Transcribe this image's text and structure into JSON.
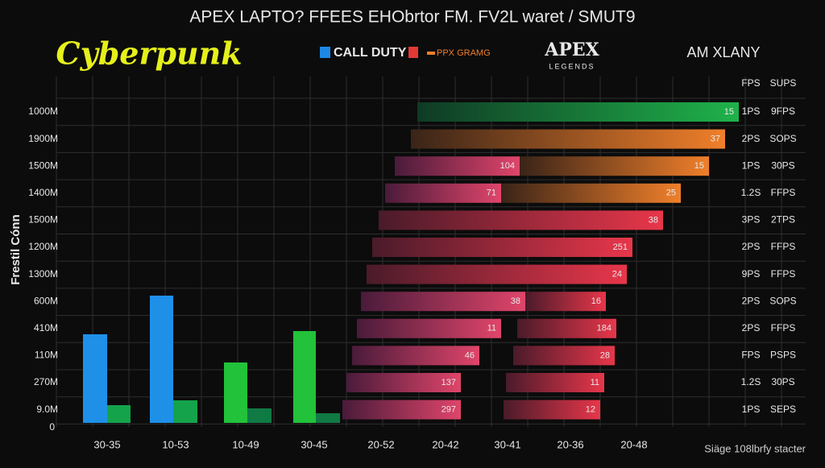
{
  "header": {
    "title": "APEX LAPTO? FFEES EHObrtor FM. FV2L waret / SMUT9"
  },
  "logos": {
    "cyberpunk": "Cyberpunk",
    "call_of_duty": "CALL DUTY",
    "ppx": "PPX GRAMG",
    "apex": "APEX",
    "legends": "LEGENDS",
    "company": "AM XLANY"
  },
  "y_axis_label": "Frestil Cónn",
  "column_headers": [
    "FPS",
    "SUPS"
  ],
  "rows": [
    {
      "label": "1000M",
      "bars": [
        "15"
      ],
      "fps": "1PS",
      "sups": "9FPS"
    },
    {
      "label": "1900M",
      "bars": [
        "37"
      ],
      "fps": "2PS",
      "sups": "SOPS"
    },
    {
      "label": "1500M",
      "bars": [
        "104",
        "15"
      ],
      "fps": "1PS",
      "sups": "30PS"
    },
    {
      "label": "1400M",
      "bars": [
        "71",
        "25"
      ],
      "fps": "1.2S",
      "sups": "FFPS"
    },
    {
      "label": "1500M",
      "bars": [
        "38"
      ],
      "fps": "3PS",
      "sups": "2TPS"
    },
    {
      "label": "1200M",
      "bars": [
        "251"
      ],
      "fps": "2PS",
      "sups": "FFPS"
    },
    {
      "label": "1300M",
      "bars": [
        "24"
      ],
      "fps": "9PS",
      "sups": "FFPS"
    },
    {
      "label": "600M",
      "bars": [
        "38",
        "16"
      ],
      "fps": "2PS",
      "sups": "SOPS"
    },
    {
      "label": "410M",
      "bars": [
        "11",
        "184"
      ],
      "fps": "2PS",
      "sups": "FFPS"
    },
    {
      "label": "110M",
      "bars": [
        "46",
        "28"
      ],
      "fps": "FPS",
      "sups": "PSPS"
    },
    {
      "label": "270M",
      "bars": [
        "137",
        "11"
      ],
      "fps": "1.2S",
      "sups": "30PS"
    },
    {
      "label": "9.0M",
      "bars": [
        "297",
        "12"
      ],
      "fps": "1PS",
      "sups": "SEPS"
    }
  ],
  "zero_label": "0",
  "x_labels": [
    "30-35",
    "10-53",
    "10-49",
    "30-45",
    "20-52",
    "20-42",
    "30-41",
    "20-36",
    "20-48"
  ],
  "footer": "Siäge 108lbrfy stacter"
}
